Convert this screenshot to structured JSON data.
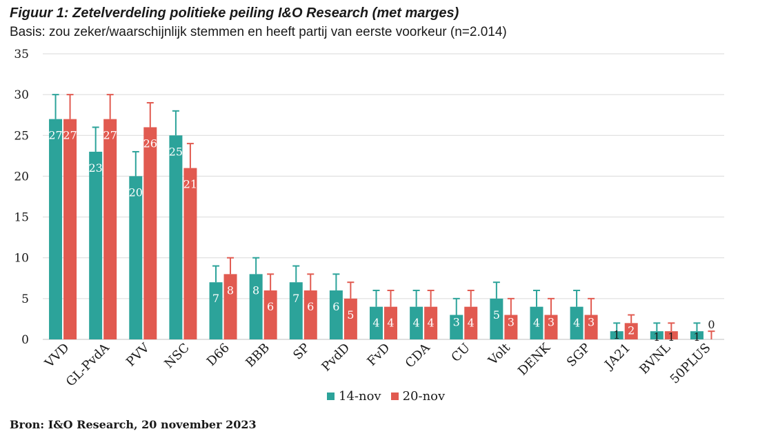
{
  "title": "Figuur 1: Zetelverdeling politieke peiling I&O Research (met marges)",
  "subtitle": "Basis: zou zeker/waarschijnlijk stemmen en heeft partij van eerste voorkeur (n=2.014)",
  "source": "Bron: I&O Research, 20 november 2023",
  "colors": {
    "s1": "#2ca39a",
    "s2": "#e15a50",
    "grid": "#d9d9d9",
    "axis": "#bfbfbf"
  },
  "chart_data": {
    "type": "bar",
    "title": "Figuur 1: Zetelverdeling politieke peiling I&O Research (met marges)",
    "xlabel": "",
    "ylabel": "",
    "ylim": [
      0,
      35
    ],
    "yticks": [
      0,
      5,
      10,
      15,
      20,
      25,
      30,
      35
    ],
    "grid": true,
    "legend_position": "bottom",
    "categories": [
      "VVD",
      "GL-PvdA",
      "PVV",
      "NSC",
      "D66",
      "BBB",
      "SP",
      "PvdD",
      "FvD",
      "CDA",
      "CU",
      "Volt",
      "DENK",
      "SGP",
      "JA21",
      "BVNL",
      "50PLUS"
    ],
    "series": [
      {
        "name": "14-nov",
        "values": [
          27,
          23,
          20,
          25,
          7,
          8,
          7,
          6,
          4,
          4,
          3,
          5,
          4,
          4,
          1,
          1,
          1
        ],
        "upper": [
          30,
          26,
          23,
          28,
          9,
          10,
          9,
          8,
          6,
          6,
          5,
          7,
          6,
          6,
          2,
          2,
          2
        ]
      },
      {
        "name": "20-nov",
        "values": [
          27,
          27,
          26,
          21,
          8,
          6,
          6,
          5,
          4,
          4,
          4,
          3,
          3,
          3,
          2,
          1,
          0
        ],
        "upper": [
          30,
          30,
          29,
          24,
          10,
          8,
          8,
          7,
          6,
          6,
          6,
          5,
          5,
          5,
          3,
          2,
          1
        ]
      }
    ]
  }
}
